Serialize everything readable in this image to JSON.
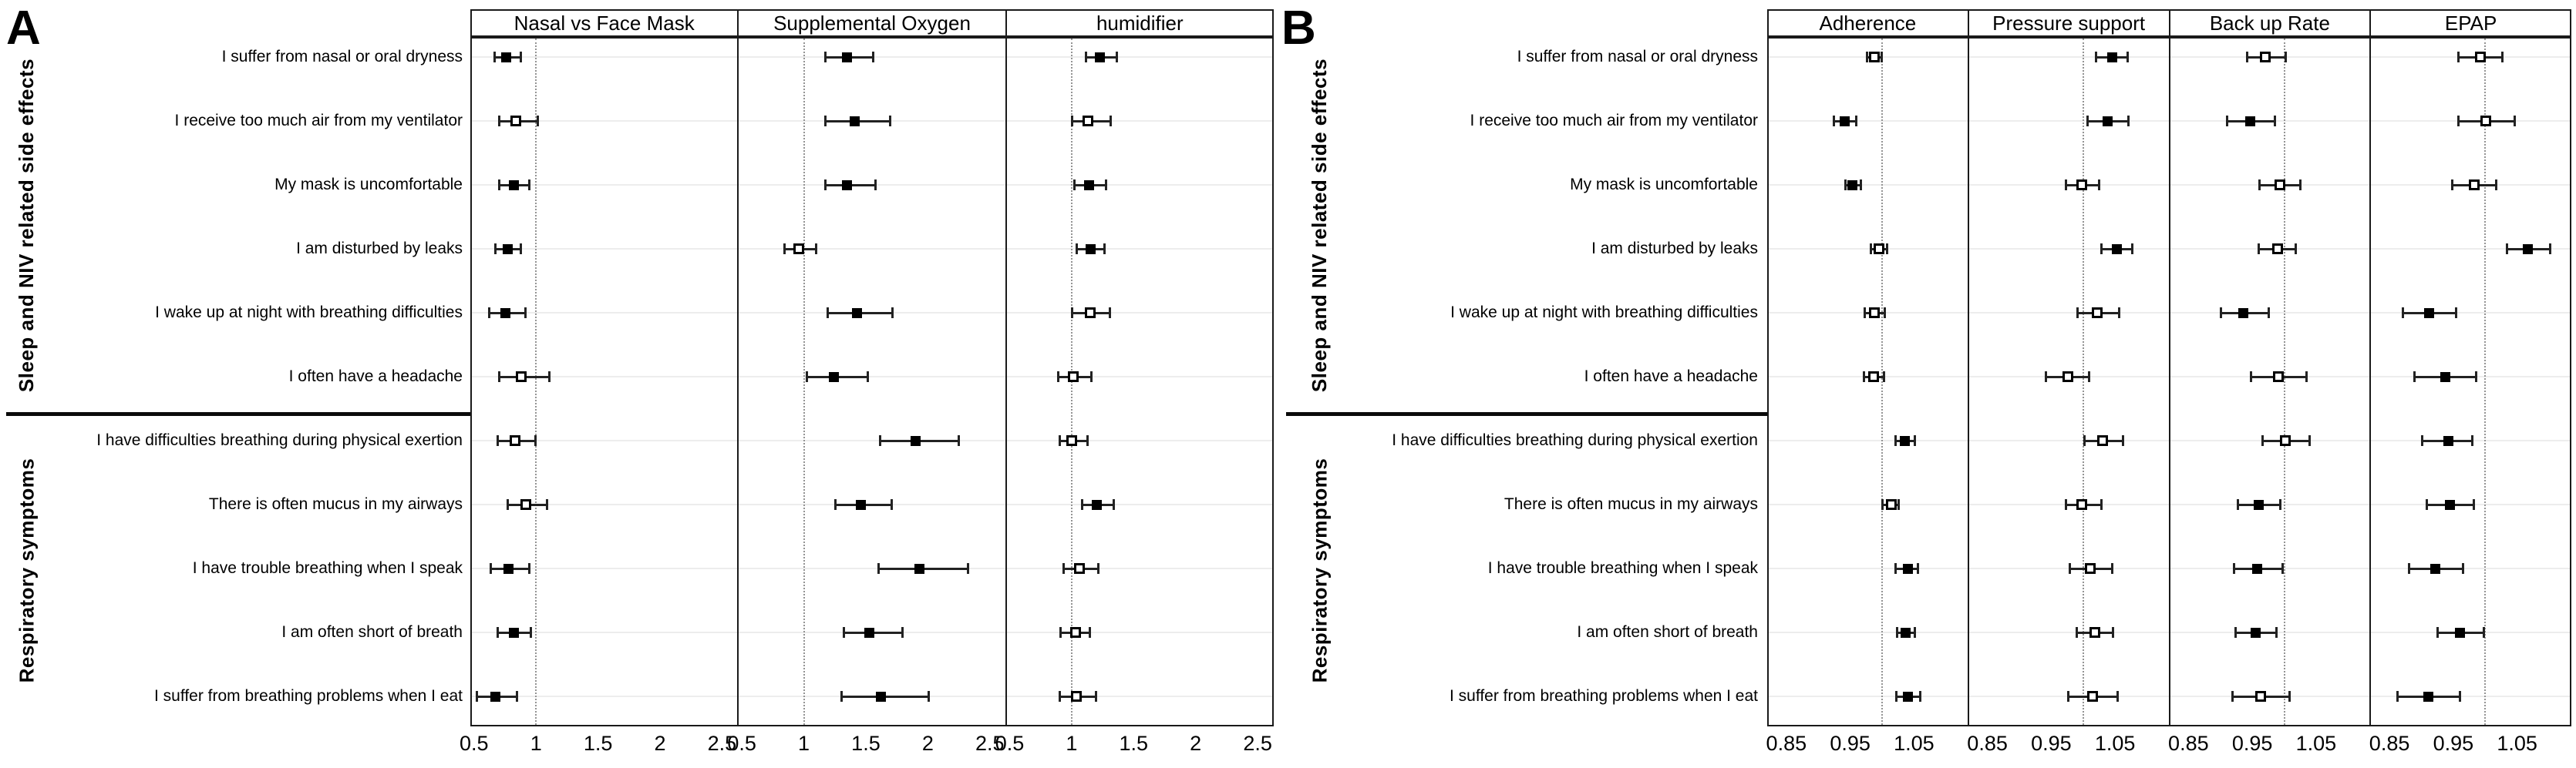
{
  "figure_colors": {
    "marker": "#000000",
    "border": "#1a1a1a",
    "grid": "#ededed",
    "reference_line": "#949494",
    "background": "#ffffff"
  },
  "chart_data": [
    {
      "type": "scatter",
      "variant": "forest-plot",
      "panel_label": "A",
      "rows": [
        "I suffer from nasal or oral dryness",
        "I receive too much air from my ventilator",
        "My mask is uncomfortable",
        "I am disturbed by leaks",
        "I wake up at night with breathing difficulties",
        "I often have a headache",
        "I have difficulties breathing during physical exertion",
        "There is often mucus in my airways",
        "I have trouble breathing when I speak",
        "I am often short of breath",
        "I suffer from breathing problems when I eat"
      ],
      "row_groups": [
        {
          "label": "Sleep and NIV related side effects",
          "rows": [
            1,
            6
          ]
        },
        {
          "label": "Respiratory symptoms",
          "rows": [
            7,
            11
          ]
        }
      ],
      "x_ticks": [
        0.5,
        1,
        1.5,
        2,
        2.5
      ],
      "x_tick_labels": [
        "0.5",
        "1",
        "1.5",
        "2",
        "2.5"
      ],
      "x_range": [
        0.47,
        2.63
      ],
      "reference_line": 1,
      "columns": [
        {
          "title": "Nasal vs Face Mask",
          "points": [
            {
              "or": 0.76,
              "ci": [
                0.66,
                0.88
              ],
              "filled": true
            },
            {
              "or": 0.84,
              "ci": [
                0.7,
                1.02
              ],
              "filled": false
            },
            {
              "or": 0.82,
              "ci": [
                0.7,
                0.95
              ],
              "filled": true
            },
            {
              "or": 0.77,
              "ci": [
                0.67,
                0.88
              ],
              "filled": true
            },
            {
              "or": 0.75,
              "ci": [
                0.62,
                0.92
              ],
              "filled": true
            },
            {
              "or": 0.88,
              "ci": [
                0.7,
                1.11
              ],
              "filled": false
            },
            {
              "or": 0.83,
              "ci": [
                0.69,
                1.0
              ],
              "filled": false
            },
            {
              "or": 0.92,
              "ci": [
                0.77,
                1.09
              ],
              "filled": false
            },
            {
              "or": 0.78,
              "ci": [
                0.63,
                0.95
              ],
              "filled": true
            },
            {
              "or": 0.82,
              "ci": [
                0.69,
                0.96
              ],
              "filled": true
            },
            {
              "or": 0.67,
              "ci": [
                0.52,
                0.85
              ],
              "filled": true
            }
          ]
        },
        {
          "title": "Supplemental Oxygen",
          "points": [
            {
              "or": 1.35,
              "ci": [
                1.17,
                1.56
              ],
              "filled": true
            },
            {
              "or": 1.41,
              "ci": [
                1.17,
                1.7
              ],
              "filled": true
            },
            {
              "or": 1.35,
              "ci": [
                1.17,
                1.58
              ],
              "filled": true
            },
            {
              "or": 0.96,
              "ci": [
                0.84,
                1.1
              ],
              "filled": false
            },
            {
              "or": 1.43,
              "ci": [
                1.19,
                1.72
              ],
              "filled": true
            },
            {
              "or": 1.24,
              "ci": [
                1.02,
                1.52
              ],
              "filled": true
            },
            {
              "or": 1.9,
              "ci": [
                1.61,
                2.25
              ],
              "filled": true
            },
            {
              "or": 1.46,
              "ci": [
                1.25,
                1.71
              ],
              "filled": true
            },
            {
              "or": 1.93,
              "ci": [
                1.6,
                2.33
              ],
              "filled": true
            },
            {
              "or": 1.53,
              "ci": [
                1.32,
                1.8
              ],
              "filled": true
            },
            {
              "or": 1.62,
              "ci": [
                1.3,
                2.01
              ],
              "filled": true
            }
          ]
        },
        {
          "title": "humidifier",
          "points": [
            {
              "or": 1.23,
              "ci": [
                1.11,
                1.37
              ],
              "filled": true
            },
            {
              "or": 1.13,
              "ci": [
                1.0,
                1.32
              ],
              "filled": false
            },
            {
              "or": 1.14,
              "ci": [
                1.02,
                1.28
              ],
              "filled": true
            },
            {
              "or": 1.15,
              "ci": [
                1.04,
                1.27
              ],
              "filled": true
            },
            {
              "or": 1.15,
              "ci": [
                1.0,
                1.31
              ],
              "filled": false
            },
            {
              "or": 1.01,
              "ci": [
                0.89,
                1.16
              ],
              "filled": false
            },
            {
              "or": 1.0,
              "ci": [
                0.9,
                1.13
              ],
              "filled": false
            },
            {
              "or": 1.2,
              "ci": [
                1.08,
                1.34
              ],
              "filled": true
            },
            {
              "or": 1.06,
              "ci": [
                0.93,
                1.22
              ],
              "filled": false
            },
            {
              "or": 1.03,
              "ci": [
                0.91,
                1.15
              ],
              "filled": false
            },
            {
              "or": 1.04,
              "ci": [
                0.9,
                1.2
              ],
              "filled": false
            }
          ]
        }
      ]
    },
    {
      "type": "scatter",
      "variant": "forest-plot",
      "panel_label": "B",
      "rows": [
        "I suffer from nasal or oral dryness",
        "I receive too much air from my ventilator",
        "My mask is uncomfortable",
        "I am disturbed by leaks",
        "I wake up at night with breathing difficulties",
        "I often have a headache",
        "I have difficulties breathing during physical exertion",
        "There is often mucus in my airways",
        "I have trouble breathing when I speak",
        "I am often short of breath",
        "I suffer from breathing problems when I eat"
      ],
      "row_groups": [
        {
          "label": "Sleep and NIV related side effects",
          "rows": [
            1,
            6
          ]
        },
        {
          "label": "Respiratory symptoms",
          "rows": [
            7,
            11
          ]
        }
      ],
      "x_ticks": [
        0.85,
        0.95,
        1.05
      ],
      "x_tick_labels": [
        "0.85",
        "0.95",
        "1.05"
      ],
      "x_range": [
        0.82,
        1.135
      ],
      "reference_line": 1,
      "columns": [
        {
          "title": "Adherence",
          "points": [
            {
              "or": 0.988,
              "ci": [
                0.976,
                1.0
              ],
              "filled": false
            },
            {
              "or": 0.942,
              "ci": [
                0.924,
                0.96
              ],
              "filled": true
            },
            {
              "or": 0.954,
              "ci": [
                0.942,
                0.967
              ],
              "filled": true
            },
            {
              "or": 0.995,
              "ci": [
                0.982,
                1.008
              ],
              "filled": false
            },
            {
              "or": 0.988,
              "ci": [
                0.972,
                1.005
              ],
              "filled": false
            },
            {
              "or": 0.987,
              "ci": [
                0.971,
                1.004
              ],
              "filled": false
            },
            {
              "or": 1.036,
              "ci": [
                1.021,
                1.052
              ],
              "filled": true
            },
            {
              "or": 1.015,
              "ci": [
                1.0,
                1.027
              ],
              "filled": false
            },
            {
              "or": 1.04,
              "ci": [
                1.021,
                1.057
              ],
              "filled": true
            },
            {
              "or": 1.037,
              "ci": [
                1.023,
                1.052
              ],
              "filled": true
            },
            {
              "or": 1.041,
              "ci": [
                1.022,
                1.061
              ],
              "filled": true
            }
          ]
        },
        {
          "title": "Pressure support",
          "points": [
            {
              "or": 1.045,
              "ci": [
                1.02,
                1.07
              ],
              "filled": true
            },
            {
              "or": 1.038,
              "ci": [
                1.006,
                1.071
              ],
              "filled": true
            },
            {
              "or": 0.998,
              "ci": [
                0.973,
                1.026
              ],
              "filled": false
            },
            {
              "or": 1.053,
              "ci": [
                1.028,
                1.078
              ],
              "filled": true
            },
            {
              "or": 1.022,
              "ci": [
                0.991,
                1.057
              ],
              "filled": false
            },
            {
              "or": 0.976,
              "ci": [
                0.941,
                1.01
              ],
              "filled": false
            },
            {
              "or": 1.03,
              "ci": [
                1.001,
                1.063
              ],
              "filled": false
            },
            {
              "or": 0.998,
              "ci": [
                0.973,
                1.029
              ],
              "filled": false
            },
            {
              "or": 1.011,
              "ci": [
                0.979,
                1.046
              ],
              "filled": false
            },
            {
              "or": 1.019,
              "ci": [
                0.99,
                1.047
              ],
              "filled": false
            },
            {
              "or": 1.015,
              "ci": [
                0.976,
                1.055
              ],
              "filled": false
            }
          ]
        },
        {
          "title": "Back up Rate",
          "points": [
            {
              "or": 0.97,
              "ci": [
                0.941,
                1.003
              ],
              "filled": false
            },
            {
              "or": 0.947,
              "ci": [
                0.91,
                0.986
              ],
              "filled": true
            },
            {
              "or": 0.993,
              "ci": [
                0.961,
                1.026
              ],
              "filled": false
            },
            {
              "or": 0.99,
              "ci": [
                0.959,
                1.019
              ],
              "filled": false
            },
            {
              "or": 0.936,
              "ci": [
                0.9,
                0.976
              ],
              "filled": true
            },
            {
              "or": 0.991,
              "ci": [
                0.947,
                1.036
              ],
              "filled": false
            },
            {
              "or": 1.002,
              "ci": [
                0.966,
                1.041
              ],
              "filled": false
            },
            {
              "or": 0.96,
              "ci": [
                0.927,
                0.995
              ],
              "filled": true
            },
            {
              "or": 0.958,
              "ci": [
                0.921,
                0.998
              ],
              "filled": true
            },
            {
              "or": 0.955,
              "ci": [
                0.923,
                0.988
              ],
              "filled": true
            },
            {
              "or": 0.963,
              "ci": [
                0.919,
                1.009
              ],
              "filled": false
            }
          ]
        },
        {
          "title": "EPAP",
          "points": [
            {
              "or": 0.993,
              "ci": [
                0.958,
                1.027
              ],
              "filled": false
            },
            {
              "or": 1.001,
              "ci": [
                0.957,
                1.047
              ],
              "filled": false
            },
            {
              "or": 0.983,
              "ci": [
                0.948,
                1.018
              ],
              "filled": false
            },
            {
              "or": 1.067,
              "ci": [
                1.033,
                1.102
              ],
              "filled": true
            },
            {
              "or": 0.912,
              "ci": [
                0.871,
                0.955
              ],
              "filled": true
            },
            {
              "or": 0.937,
              "ci": [
                0.889,
                0.986
              ],
              "filled": true
            },
            {
              "or": 0.942,
              "ci": [
                0.901,
                0.98
              ],
              "filled": true
            },
            {
              "or": 0.945,
              "ci": [
                0.908,
                0.983
              ],
              "filled": true
            },
            {
              "or": 0.922,
              "ci": [
                0.88,
                0.966
              ],
              "filled": true
            },
            {
              "or": 0.961,
              "ci": [
                0.925,
                0.999
              ],
              "filled": true
            },
            {
              "or": 0.911,
              "ci": [
                0.862,
                0.961
              ],
              "filled": true
            }
          ]
        }
      ]
    }
  ]
}
